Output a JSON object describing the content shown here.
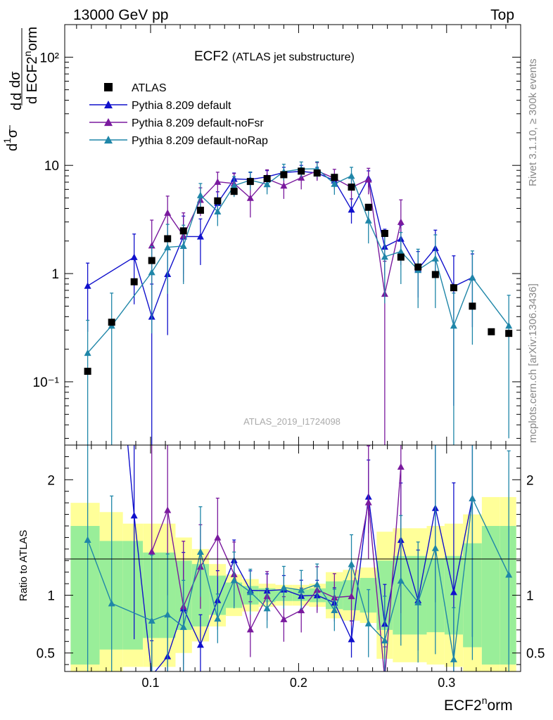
{
  "header": {
    "left": "13000 GeV pp",
    "right": "Top"
  },
  "title": {
    "main": "ECF2",
    "sub": "(ATLAS jet substructure)"
  },
  "analysis_label": "ATLAS_2019_I1724098",
  "side_labels": {
    "rivet": "Rivet 3.1.10, ≥ 300k events",
    "mcplots": "mcplots.cern.ch [arXiv:1306.3436]"
  },
  "axes": {
    "ylabel_main": "dσ / d ECF2norm · 1/σ",
    "ylabel_ratio": "Ratio to ATLAS",
    "xlabel": "ECF2norm"
  },
  "colors": {
    "data": "#000000",
    "default": "#1010cc",
    "noFsr": "#7a1a9e",
    "noRap": "#1f86a8",
    "band_inner": "#99ee99",
    "band_outer": "#ffff99"
  },
  "legend": {
    "position": "top-left",
    "entries": [
      {
        "key": "data",
        "label": "ATLAS"
      },
      {
        "key": "default",
        "label": "Pythia 8.209 default"
      },
      {
        "key": "noFsr",
        "label": "Pythia 8.209 default-noFsr"
      },
      {
        "key": "noRap",
        "label": "Pythia 8.209 default-noRap"
      }
    ]
  },
  "chart_data": {
    "type": "scatter",
    "x": [
      0.0575,
      0.0737,
      0.0889,
      0.1008,
      0.1115,
      0.1222,
      0.1337,
      0.1453,
      0.1564,
      0.1674,
      0.1787,
      0.19,
      0.2018,
      0.2125,
      0.2242,
      0.2357,
      0.2472,
      0.2582,
      0.2691,
      0.2807,
      0.2924,
      0.3048,
      0.3174,
      0.3302,
      0.342
    ],
    "xlim": [
      0.042,
      0.35
    ],
    "xticks": [
      0.1,
      0.2,
      0.3
    ],
    "xlabel": "ECF2norm",
    "main": {
      "yscale": "log",
      "ylim": [
        0.026,
        200
      ],
      "yticks": [
        0.1,
        1,
        10,
        100
      ],
      "ytick_labels": [
        "10⁻¹",
        "1",
        "10",
        "10²"
      ]
    },
    "ratio": {
      "ylim": [
        0.34,
        2.3
      ],
      "yticks": [
        0.5,
        1,
        2
      ],
      "ytick_labels": [
        "0.5",
        "1",
        "2"
      ],
      "ylabel": "Ratio to ATLAS"
    },
    "data": {
      "name": "ATLAS",
      "values": [
        0.125,
        0.355,
        0.84,
        1.32,
        2.1,
        2.48,
        3.85,
        4.7,
        5.75,
        7.1,
        7.55,
        8.2,
        8.85,
        8.5,
        7.75,
        6.3,
        4.1,
        2.35,
        1.42,
        1.15,
        0.98,
        0.74,
        0.5,
        0.29,
        0.28
      ]
    },
    "band_inner": [
      0.6,
      0.47,
      0.47,
      0.37,
      0.37,
      0.3,
      0.27,
      0.17,
      0.11,
      0.08,
      0.06,
      0.05,
      0.05,
      0.06,
      0.12,
      0.13,
      0.15,
      0.3,
      0.34,
      0.34,
      0.32,
      0.34,
      0.45,
      0.6,
      0.6
    ],
    "band_outer": [
      0.8,
      0.72,
      0.62,
      0.62,
      0.62,
      0.5,
      0.4,
      0.27,
      0.18,
      0.14,
      0.1,
      0.09,
      0.09,
      0.1,
      0.2,
      0.22,
      0.24,
      0.55,
      0.58,
      0.58,
      0.6,
      0.62,
      0.7,
      0.85,
      0.85
    ],
    "series": [
      {
        "key": "default",
        "name": "Pythia 8.209 default",
        "values": [
          0.77,
          0.0,
          1.42,
          0.4,
          0.99,
          2.2,
          2.2,
          4.5,
          7.5,
          7.4,
          7.85,
          8.6,
          8.8,
          8.5,
          7.25,
          3.9,
          7.6,
          1.77,
          2.1,
          1.1,
          1.72,
          0.76,
          0.92,
          0.0,
          0.0
        ],
        "errors": [
          0.48,
          0.0,
          0.9,
          0.4,
          0.72,
          1.2,
          1.0,
          1.2,
          1.0,
          1.2,
          1.1,
          1.0,
          1.2,
          1.1,
          1.0,
          1.0,
          1.3,
          0.8,
          0.7,
          0.5,
          0.8,
          0.7,
          0.6,
          0.0,
          0.0
        ]
      },
      {
        "key": "noFsr",
        "name": "Pythia 8.209 default-noFsr",
        "values": [
          0.0,
          0.0,
          0.0,
          1.82,
          3.65,
          2.24,
          4.8,
          7.05,
          6.8,
          5.0,
          7.5,
          6.5,
          7.7,
          8.9,
          7.6,
          6.25,
          7.4,
          0.65,
          3.0,
          0.0,
          0.0,
          0.0,
          0.0,
          0.0,
          0.0
        ],
        "errors": [
          0.0,
          0.0,
          0.0,
          1.3,
          1.55,
          1.4,
          1.4,
          1.6,
          1.6,
          1.7,
          1.6,
          1.6,
          1.7,
          1.7,
          1.6,
          1.6,
          2.0,
          0.65,
          1.8,
          0.0,
          0.0,
          0.0,
          0.0,
          0.0,
          0.0
        ]
      },
      {
        "key": "noRap",
        "name": "Pythia 8.209 default-noRap",
        "values": [
          0.185,
          0.33,
          0.0,
          1.03,
          1.75,
          1.8,
          5.3,
          3.75,
          6.5,
          7.3,
          6.7,
          8.75,
          9.25,
          9.3,
          6.75,
          8.0,
          3.1,
          1.43,
          1.6,
          1.08,
          1.38,
          0.33,
          0.92,
          0.0,
          0.33
        ],
        "errors": [
          0.185,
          0.33,
          0.0,
          0.75,
          1.1,
          1.0,
          1.5,
          1.0,
          1.4,
          1.4,
          1.3,
          1.5,
          1.5,
          1.5,
          1.4,
          1.6,
          1.2,
          0.9,
          0.8,
          0.6,
          0.9,
          0.33,
          0.7,
          0.0,
          0.3
        ]
      }
    ]
  }
}
